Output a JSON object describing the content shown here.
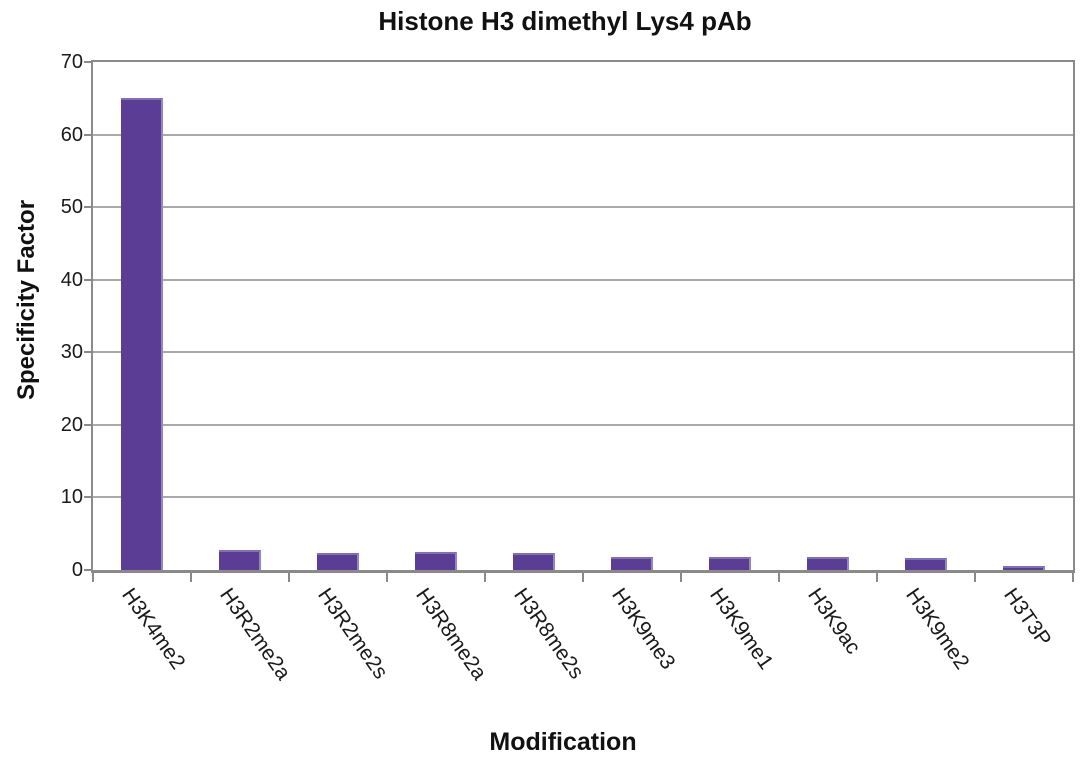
{
  "chart_data": {
    "type": "bar",
    "title": "Histone H3 dimethyl Lys4 pAb",
    "xlabel": "Modification",
    "ylabel": "Specificity Factor",
    "categories": [
      "H3K4me2",
      "H3R2me2a",
      "H3R2me2s",
      "H3R8me2a",
      "H3R8me2s",
      "H3K9me3",
      "H3K9me1",
      "H3K9ac",
      "H3K9me2",
      "H3T3P"
    ],
    "values": [
      65,
      2.7,
      2.4,
      2.5,
      2.4,
      1.8,
      1.8,
      1.8,
      1.6,
      0.5
    ],
    "ylim": [
      0,
      70
    ],
    "yticks": [
      0,
      10,
      20,
      30,
      40,
      50,
      60,
      70
    ],
    "grid": true,
    "legend": "none",
    "colors": {
      "bar_fill": "#5b3d96",
      "bar_edge_top": "#7e70b5",
      "bar_edge_right": "#9286c7",
      "gridline": "#a9a9a9",
      "axis": "#8a8a8a",
      "text": "#1a1a1a"
    }
  }
}
